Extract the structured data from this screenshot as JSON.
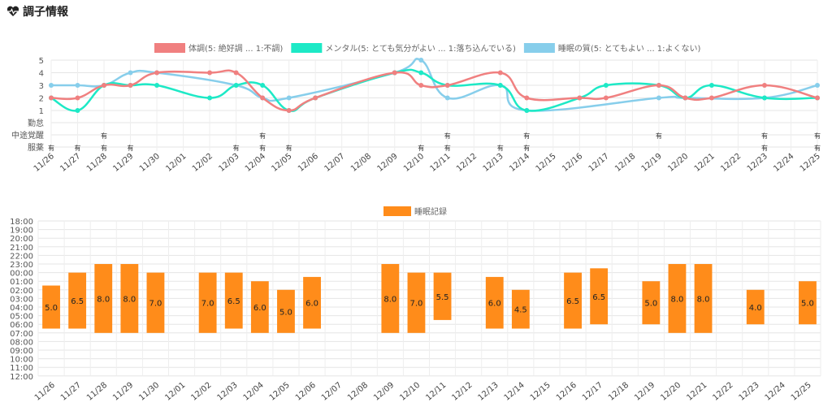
{
  "header": {
    "title": "調子情報",
    "icon": "heart-pulse-icon"
  },
  "chart_data": [
    {
      "type": "line",
      "x": [
        "11/26",
        "11/27",
        "11/28",
        "11/29",
        "11/30",
        "12/01",
        "12/02",
        "12/03",
        "12/04",
        "12/05",
        "12/06",
        "12/07",
        "12/08",
        "12/09",
        "12/10",
        "12/11",
        "12/12",
        "12/13",
        "12/14",
        "12/15",
        "12/16",
        "12/17",
        "12/18",
        "12/19",
        "12/20",
        "12/21",
        "12/22",
        "12/23",
        "12/24",
        "12/25"
      ],
      "ylim": [
        1,
        5
      ],
      "yticks": [
        1,
        2,
        3,
        4,
        5
      ],
      "grid": true,
      "legend_position": "top-center",
      "series": [
        {
          "name": "体調(5: 絶好調 ... 1:不調)",
          "color": "#f08080",
          "values": [
            2,
            2,
            3,
            3,
            4,
            null,
            4,
            4,
            2,
            1,
            2,
            null,
            null,
            4,
            3,
            3,
            null,
            4,
            2,
            null,
            2,
            2,
            null,
            3,
            2,
            2,
            null,
            3,
            null,
            2
          ]
        },
        {
          "name": "メンタル(5: とても気分がよい ... 1:落ち込んでいる)",
          "color": "#1de9c6",
          "values": [
            2,
            1,
            3,
            3,
            3,
            null,
            2,
            3,
            3,
            1,
            2,
            null,
            null,
            4,
            4,
            3,
            null,
            3,
            1,
            null,
            2,
            3,
            null,
            3,
            2,
            3,
            null,
            2,
            null,
            2
          ]
        },
        {
          "name": "睡眠の質(5: とてもよい ... 1:よくない)",
          "color": "#87ceeb",
          "values": [
            3,
            3,
            3,
            4,
            4,
            null,
            null,
            3,
            2,
            2,
            null,
            null,
            null,
            4,
            5,
            2,
            null,
            3,
            1,
            null,
            null,
            null,
            null,
            2,
            2,
            null,
            null,
            2,
            null,
            3
          ]
        }
      ],
      "categories": [
        "勤怠",
        "中途覚醒",
        "服薬"
      ],
      "flag_text": "有",
      "flags": {
        "中途覚醒": [
          "11/28",
          "12/04",
          "12/11",
          "12/14",
          "12/19",
          "12/23",
          "12/25"
        ],
        "服薬": [
          "11/26",
          "11/27",
          "11/28",
          "11/29",
          "12/03",
          "12/04",
          "12/05",
          "12/10",
          "12/11",
          "12/13",
          "12/14",
          "12/23",
          "12/25"
        ]
      }
    },
    {
      "type": "bar",
      "legend": "睡眠記録",
      "color": "#ff8c1a",
      "x": [
        "11/26",
        "11/27",
        "11/28",
        "11/29",
        "11/30",
        "12/01",
        "12/02",
        "12/03",
        "12/04",
        "12/05",
        "12/06",
        "12/07",
        "12/08",
        "12/09",
        "12/10",
        "12/11",
        "12/12",
        "12/13",
        "12/14",
        "12/15",
        "12/16",
        "12/17",
        "12/18",
        "12/19",
        "12/20",
        "12/21",
        "12/22",
        "12/23",
        "12/24",
        "12/25"
      ],
      "yticks": [
        "18:00",
        "19:00",
        "20:00",
        "21:00",
        "22:00",
        "23:00",
        "00:00",
        "01:00",
        "02:00",
        "03:00",
        "04:00",
        "05:00",
        "06:00",
        "07:00",
        "08:00",
        "09:00",
        "10:00",
        "11:00",
        "12:00"
      ],
      "bars": [
        {
          "date": "11/26",
          "start": 25.5,
          "end": 30.5,
          "hours": "5.0"
        },
        {
          "date": "11/27",
          "start": 24.0,
          "end": 30.5,
          "hours": "6.5"
        },
        {
          "date": "11/28",
          "start": 23.0,
          "end": 31.0,
          "hours": "8.0"
        },
        {
          "date": "11/29",
          "start": 23.0,
          "end": 31.0,
          "hours": "8.0"
        },
        {
          "date": "11/30",
          "start": 24.0,
          "end": 31.0,
          "hours": "7.0"
        },
        {
          "date": "12/02",
          "start": 24.0,
          "end": 31.0,
          "hours": "7.0"
        },
        {
          "date": "12/03",
          "start": 24.0,
          "end": 30.5,
          "hours": "6.5"
        },
        {
          "date": "12/04",
          "start": 25.0,
          "end": 31.0,
          "hours": "6.0"
        },
        {
          "date": "12/05",
          "start": 26.0,
          "end": 31.0,
          "hours": "5.0"
        },
        {
          "date": "12/06",
          "start": 24.5,
          "end": 30.5,
          "hours": "6.0"
        },
        {
          "date": "12/09",
          "start": 23.0,
          "end": 31.0,
          "hours": "8.0"
        },
        {
          "date": "12/10",
          "start": 24.0,
          "end": 31.0,
          "hours": "7.0"
        },
        {
          "date": "12/11",
          "start": 24.0,
          "end": 29.5,
          "hours": "5.5"
        },
        {
          "date": "12/13",
          "start": 24.5,
          "end": 30.5,
          "hours": "6.0"
        },
        {
          "date": "12/14",
          "start": 26.0,
          "end": 30.5,
          "hours": "4.5"
        },
        {
          "date": "12/16",
          "start": 24.0,
          "end": 30.5,
          "hours": "6.5"
        },
        {
          "date": "12/17",
          "start": 23.5,
          "end": 30.0,
          "hours": "6.5"
        },
        {
          "date": "12/19",
          "start": 25.0,
          "end": 30.0,
          "hours": "5.0"
        },
        {
          "date": "12/20",
          "start": 23.0,
          "end": 31.0,
          "hours": "8.0"
        },
        {
          "date": "12/21",
          "start": 23.0,
          "end": 31.0,
          "hours": "8.0"
        },
        {
          "date": "12/23",
          "start": 26.0,
          "end": 30.0,
          "hours": "4.0"
        },
        {
          "date": "12/25",
          "start": 25.0,
          "end": 30.0,
          "hours": "5.0"
        }
      ]
    }
  ]
}
